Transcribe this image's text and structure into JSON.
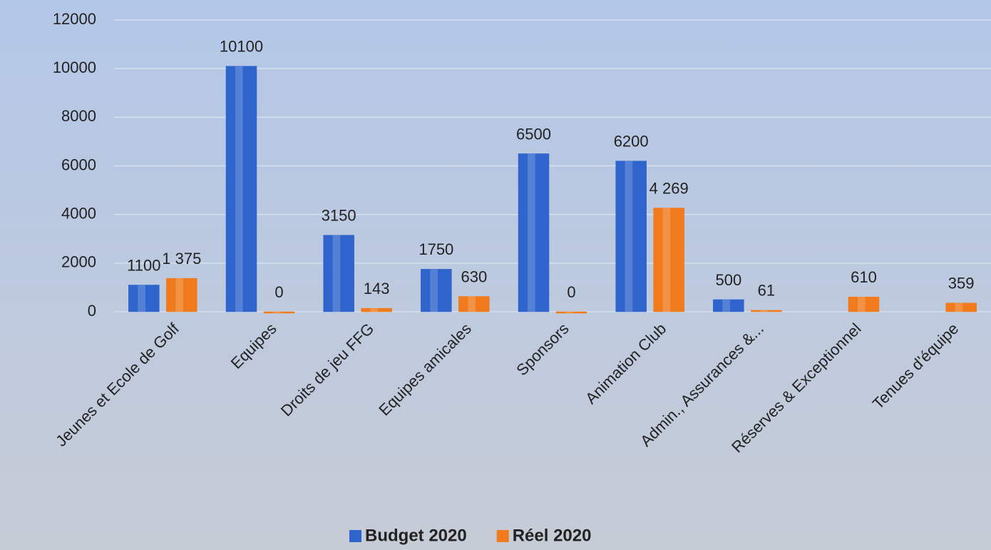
{
  "chart_data": {
    "type": "bar",
    "categories": [
      "Jeunes et Ecole de Golf",
      "Equipes",
      "Droits de jeu FFG",
      "Equipes amicales",
      "Sponsors",
      "Animation Club",
      "Admin., Assurances &...",
      "Réserves & Exceptionnel",
      "Tenues d'équipe"
    ],
    "series": [
      {
        "name": "Budget 2020",
        "color": "#2f64cc",
        "values": [
          1100,
          10100,
          3150,
          1750,
          6500,
          6200,
          500,
          null,
          null
        ]
      },
      {
        "name": "Réel 2020",
        "color": "#f07a1c",
        "values": [
          1375,
          0,
          143,
          630,
          0,
          4269,
          61,
          610,
          359
        ],
        "value_labels": [
          "1 375",
          "0",
          "143",
          "630",
          "0",
          "4 269",
          "61",
          "610",
          "359"
        ]
      }
    ],
    "ylim": [
      0,
      12000
    ],
    "yticks": [
      0,
      2000,
      4000,
      6000,
      8000,
      10000,
      12000
    ],
    "grid": true,
    "legend": "bottom"
  }
}
